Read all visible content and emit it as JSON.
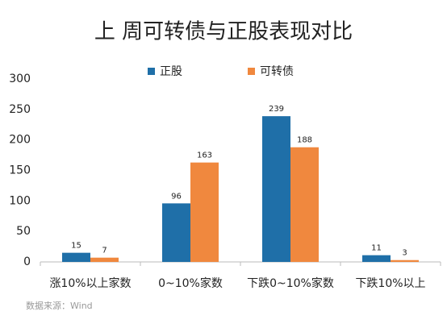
{
  "chart_data": {
    "type": "bar",
    "title": "上 周可转债与正股表现对比",
    "categories": [
      "涨10%以上家数",
      "0~10%家数",
      "下跌0~10%家数",
      "下跌10%以上"
    ],
    "series": [
      {
        "name": "正股",
        "color": "#1f6fa8",
        "values": [
          15,
          96,
          239,
          11
        ]
      },
      {
        "name": "可转债",
        "color": "#f0883e",
        "values": [
          7,
          163,
          188,
          3
        ]
      }
    ],
    "ylim": [
      0,
      300
    ],
    "yticks": [
      0,
      50,
      100,
      150,
      200,
      250,
      300
    ],
    "grid": false,
    "legend": "top",
    "source": "数据来源：Wind"
  }
}
